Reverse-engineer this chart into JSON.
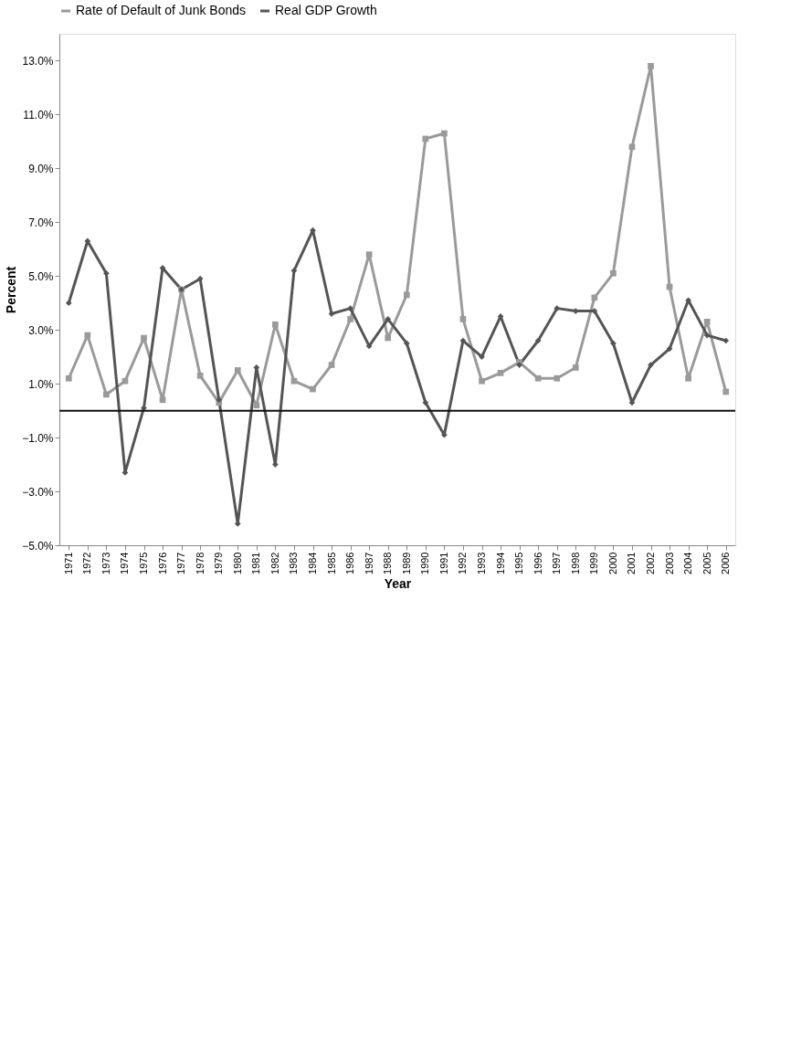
{
  "chart_data": {
    "type": "line",
    "xlabel": "Year",
    "ylabel": "Percent",
    "categories": [
      "1971",
      "1972",
      "1973",
      "1974",
      "1975",
      "1976",
      "1977",
      "1978",
      "1979",
      "1980",
      "1981",
      "1982",
      "1983",
      "1984",
      "1985",
      "1986",
      "1987",
      "1988",
      "1989",
      "1990",
      "1991",
      "1992",
      "1993",
      "1994",
      "1995",
      "1996",
      "1997",
      "1998",
      "1999",
      "2000",
      "2001",
      "2002",
      "2003",
      "2004",
      "2005",
      "2006"
    ],
    "series": [
      {
        "name": "Rate of Default of Junk Bonds",
        "color": "#9a9a9a",
        "marker": "square",
        "values": [
          1.2,
          2.8,
          0.6,
          1.1,
          2.7,
          0.4,
          4.5,
          1.3,
          0.3,
          1.5,
          0.2,
          3.2,
          1.1,
          0.8,
          1.7,
          3.4,
          5.8,
          2.7,
          4.3,
          10.1,
          10.3,
          3.4,
          1.1,
          1.4,
          1.8,
          1.2,
          1.2,
          1.6,
          4.2,
          5.1,
          9.8,
          12.8,
          4.6,
          1.2,
          3.3,
          0.7
        ]
      },
      {
        "name": "Real GDP Growth",
        "color": "#555555",
        "marker": "diamond",
        "values": [
          4.0,
          6.3,
          5.1,
          -2.3,
          0.1,
          5.3,
          4.5,
          4.9,
          0.4,
          -4.2,
          1.6,
          -2.0,
          5.2,
          6.7,
          3.6,
          3.8,
          2.4,
          3.4,
          2.5,
          0.3,
          -0.9,
          2.6,
          2.0,
          3.5,
          1.7,
          2.6,
          3.8,
          3.7,
          3.7,
          2.5,
          0.3,
          1.7,
          2.3,
          4.1,
          2.8,
          2.6
        ]
      }
    ],
    "ylim": [
      -5,
      14
    ],
    "yticks": [
      {
        "value": -5,
        "label": "−5.0%"
      },
      {
        "value": -3,
        "label": "−3.0%"
      },
      {
        "value": -1,
        "label": "−1.0%"
      },
      {
        "value": 1,
        "label": "1.0%"
      },
      {
        "value": 3,
        "label": "3.0%"
      },
      {
        "value": 5,
        "label": "5.0%"
      },
      {
        "value": 7,
        "label": "7.0%"
      },
      {
        "value": 9,
        "label": "9.0%"
      },
      {
        "value": 11,
        "label": "11.0%"
      },
      {
        "value": 13,
        "label": "13.0%"
      }
    ],
    "ref_lines": [
      {
        "axis": "y",
        "value": 0,
        "color": "#111111"
      }
    ],
    "grid": false,
    "legend": "top"
  }
}
